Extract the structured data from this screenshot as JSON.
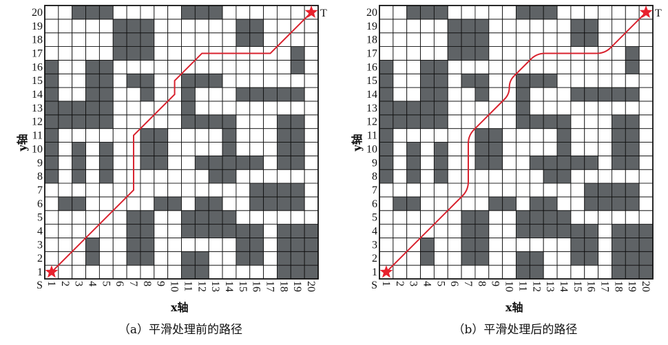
{
  "grid_size": 20,
  "colors": {
    "obstacle": "#5f6366",
    "free": "#ffffff",
    "grid_line": "#111111",
    "path": "#d8222e",
    "marker": "#e8222e"
  },
  "obstacles_by_row": {
    "20": [
      3,
      4,
      5,
      11,
      12,
      13
    ],
    "19": [
      6,
      7,
      8,
      15,
      16
    ],
    "18": [
      6,
      7,
      8,
      15,
      16
    ],
    "17": [
      6,
      7,
      8,
      19
    ],
    "16": [
      1,
      4,
      5,
      19
    ],
    "15": [
      1,
      4,
      5,
      7,
      8,
      11,
      12,
      13
    ],
    "14": [
      1,
      4,
      5,
      8,
      11,
      15,
      16,
      17,
      18,
      19
    ],
    "13": [
      1,
      2,
      3,
      4,
      5,
      11
    ],
    "12": [
      1,
      2,
      3,
      4,
      5,
      11,
      12,
      13,
      14,
      18,
      19
    ],
    "11": [
      1,
      8,
      9,
      14,
      18,
      19
    ],
    "10": [
      1,
      3,
      5,
      8,
      9,
      14,
      18,
      19
    ],
    "9": [
      1,
      3,
      5,
      8,
      9,
      12,
      13,
      14,
      15,
      16,
      18,
      19
    ],
    "8": [
      1,
      3,
      5,
      13,
      14
    ],
    "7": [
      16,
      17,
      18,
      19
    ],
    "6": [
      2,
      3,
      9,
      10,
      12,
      13,
      16,
      17,
      18,
      19
    ],
    "5": [
      7,
      8,
      11,
      12,
      13,
      14
    ],
    "4": [
      7,
      8,
      11,
      12,
      13,
      14,
      15,
      16,
      18,
      19,
      20
    ],
    "3": [
      4,
      7,
      8,
      15,
      16,
      18,
      19,
      20
    ],
    "2": [
      4,
      7,
      8,
      11,
      12,
      15,
      16,
      18,
      19,
      20
    ],
    "1": [
      11,
      12,
      18,
      19,
      20
    ]
  },
  "path_waypoints": [
    [
      1,
      1
    ],
    [
      7,
      7
    ],
    [
      7,
      11
    ],
    [
      10,
      14
    ],
    [
      10,
      15
    ],
    [
      12,
      17
    ],
    [
      17,
      17
    ],
    [
      20,
      20
    ]
  ],
  "start_label": "S",
  "target_label": "T",
  "x_ticks": [
    "1",
    "2",
    "3",
    "4",
    "5",
    "6",
    "7",
    "8",
    "9",
    "10",
    "11",
    "12",
    "13",
    "14",
    "15",
    "16",
    "17",
    "18",
    "19",
    "20"
  ],
  "y_ticks": [
    "1",
    "2",
    "3",
    "4",
    "5",
    "6",
    "7",
    "8",
    "9",
    "10",
    "11",
    "12",
    "13",
    "14",
    "15",
    "16",
    "17",
    "18",
    "19",
    "20"
  ],
  "panels": [
    {
      "x_axis_label": "x轴",
      "y_axis_label": "y轴",
      "caption": "（a）平滑处理前的路径",
      "smoothed": false
    },
    {
      "x_axis_label": "x轴",
      "y_axis_label": "y轴",
      "caption": "（b）平滑处理后的路径",
      "smoothed": true
    }
  ]
}
